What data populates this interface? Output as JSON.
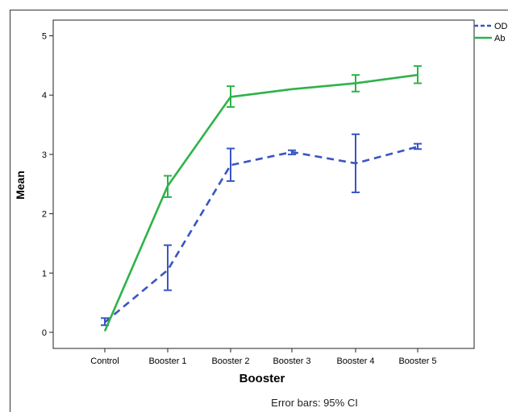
{
  "chart_data": {
    "type": "line",
    "categories": [
      "Control",
      "Booster 1",
      "Booster 2",
      "Booster 3",
      "Booster 4",
      "Booster 5"
    ],
    "series": [
      {
        "name": "OD",
        "color": "#3a55c4",
        "style": "dashed",
        "values": [
          0.17,
          1.05,
          2.82,
          3.04,
          2.85,
          3.13
        ],
        "ci_low": [
          0.12,
          0.71,
          2.55,
          3.0,
          2.36,
          3.09
        ],
        "ci_high": [
          0.24,
          1.47,
          3.1,
          3.07,
          3.34,
          3.18
        ]
      },
      {
        "name": "Ab",
        "color": "#2fb24a",
        "style": "solid",
        "values": [
          0.02,
          2.47,
          3.97,
          4.1,
          4.2,
          4.34
        ],
        "ci_low": [
          0.02,
          2.28,
          3.8,
          4.1,
          4.06,
          4.2
        ],
        "ci_high": [
          0.02,
          2.64,
          4.15,
          4.1,
          4.34,
          4.49
        ]
      }
    ],
    "xlabel": "Booster",
    "ylabel": "Mean",
    "ylim": [
      -0.2,
      5.4
    ],
    "yticks": [
      "0",
      "1",
      "2",
      "3",
      "4",
      "5"
    ],
    "grid": false,
    "legend_position": "top-right",
    "footnote": "Error bars: 95% CI"
  }
}
